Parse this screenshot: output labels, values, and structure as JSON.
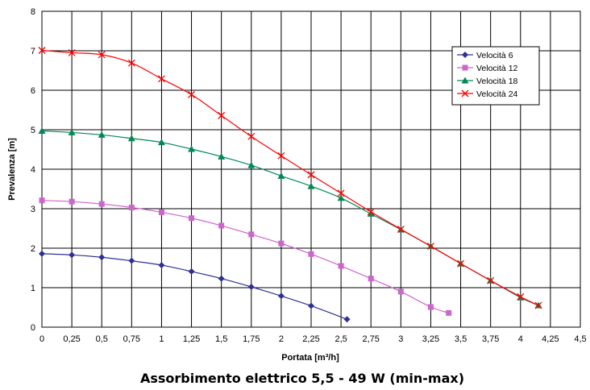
{
  "chart_data": {
    "type": "line",
    "title": "",
    "caption": "Assorbimento elettrico 5,5 - 49 W (min-max)",
    "xlabel": "Portata [m³/h]",
    "ylabel": "Prevalenza [m]",
    "xlim": [
      0,
      4.5
    ],
    "ylim": [
      0,
      8
    ],
    "x_ticks": [
      0,
      0.25,
      0.5,
      0.75,
      1,
      1.25,
      1.5,
      1.75,
      2,
      2.25,
      2.5,
      2.75,
      3,
      3.25,
      3.5,
      3.75,
      4,
      4.25,
      4.5
    ],
    "x_tick_labels": [
      "0",
      "0,25",
      "0,5",
      "0,75",
      "1",
      "1,25",
      "1,5",
      "1,75",
      "2",
      "2,25",
      "2,5",
      "2,75",
      "3",
      "3,25",
      "3,5",
      "3,75",
      "4",
      "4,25",
      "4,5"
    ],
    "y_ticks": [
      0,
      1,
      2,
      3,
      4,
      5,
      6,
      7,
      8
    ],
    "y_tick_labels": [
      "0",
      "1",
      "2",
      "3",
      "4",
      "5",
      "6",
      "7",
      "8"
    ],
    "grid": true,
    "legend_position": "top-right",
    "series": [
      {
        "name": "Velocità 6",
        "color": "#2e3192",
        "marker": "diamond",
        "x": [
          0,
          0.25,
          0.5,
          0.75,
          1,
          1.25,
          1.5,
          1.75,
          2,
          2.25,
          2.55
        ],
        "y": [
          1.86,
          1.83,
          1.77,
          1.68,
          1.57,
          1.41,
          1.23,
          1.02,
          0.79,
          0.54,
          0.2
        ]
      },
      {
        "name": "Velocità 12",
        "color": "#cc66cc",
        "marker": "square",
        "x": [
          0,
          0.25,
          0.5,
          0.75,
          1,
          1.25,
          1.5,
          1.75,
          2,
          2.25,
          2.5,
          2.75,
          3,
          3.25,
          3.4
        ],
        "y": [
          3.21,
          3.18,
          3.12,
          3.03,
          2.91,
          2.76,
          2.57,
          2.35,
          2.12,
          1.85,
          1.55,
          1.23,
          0.9,
          0.51,
          0.36
        ]
      },
      {
        "name": "Velocità 18",
        "color": "#008855",
        "marker": "triangle",
        "x": [
          0,
          0.25,
          0.5,
          0.75,
          1,
          1.25,
          1.5,
          1.75,
          2,
          2.25,
          2.5,
          2.75,
          3,
          3.25,
          3.5,
          3.75,
          4,
          4.15
        ],
        "y": [
          4.97,
          4.93,
          4.87,
          4.78,
          4.68,
          4.51,
          4.32,
          4.1,
          3.83,
          3.57,
          3.27,
          2.87,
          2.47,
          2.05,
          1.61,
          1.18,
          0.75,
          0.55
        ]
      },
      {
        "name": "Velocità 24",
        "color": "#ff0000",
        "marker": "x",
        "x": [
          0,
          0.25,
          0.5,
          0.75,
          1,
          1.25,
          1.5,
          1.75,
          2,
          2.25,
          2.5,
          2.75,
          3,
          3.25,
          3.5,
          3.75,
          4,
          4.15
        ],
        "y": [
          7.01,
          6.95,
          6.9,
          6.69,
          6.29,
          5.89,
          5.36,
          4.83,
          4.34,
          3.86,
          3.39,
          2.92,
          2.48,
          2.05,
          1.61,
          1.18,
          0.77,
          0.55
        ]
      }
    ]
  }
}
